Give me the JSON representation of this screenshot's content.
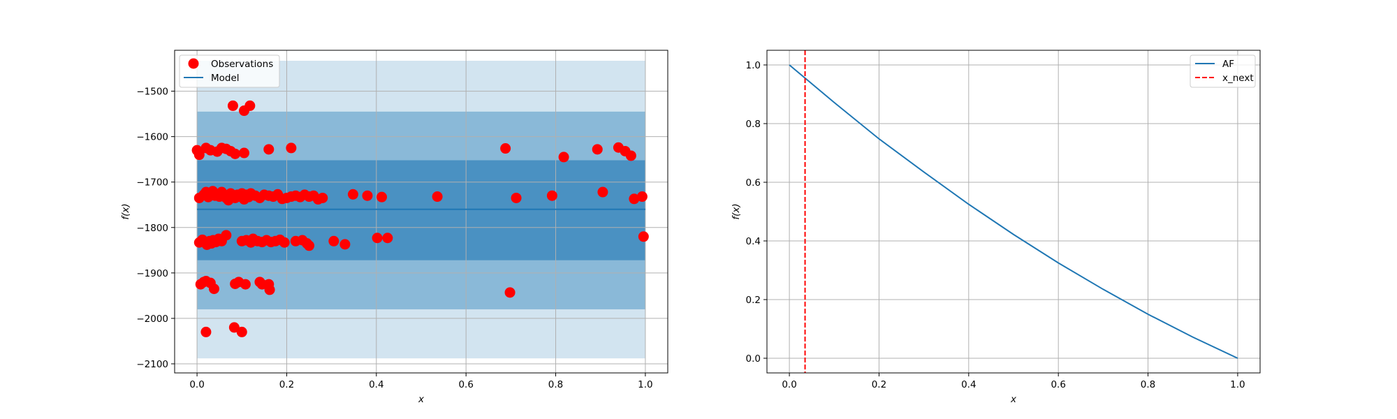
{
  "chart_data": [
    {
      "type": "scatter",
      "xlabel": "x",
      "ylabel": "f(x)",
      "xlim": [
        -0.05,
        1.05
      ],
      "ylim": [
        -2120,
        -1410
      ],
      "xticks": [
        0.0,
        0.2,
        0.4,
        0.6,
        0.8,
        1.0
      ],
      "xtick_labels": [
        "0.0",
        "0.2",
        "0.4",
        "0.6",
        "0.8",
        "1.0"
      ],
      "yticks": [
        -2100,
        -2000,
        -1900,
        -1800,
        -1700,
        -1600,
        -1500
      ],
      "ytick_labels": [
        "−2100",
        "−2000",
        "−1900",
        "−1800",
        "−1700",
        "−1600",
        "−1500"
      ],
      "grid": true,
      "legend_position": "top-left",
      "legend": [
        "Observations",
        "Model"
      ],
      "series": [
        {
          "name": "Observations",
          "color": "#ff0000",
          "points": [
            [
              0.0,
              -1630
            ],
            [
              0.005,
              -1640
            ],
            [
              0.02,
              -1625
            ],
            [
              0.03,
              -1630
            ],
            [
              0.045,
              -1633
            ],
            [
              0.055,
              -1625
            ],
            [
              0.065,
              -1627
            ],
            [
              0.075,
              -1632
            ],
            [
              0.085,
              -1638
            ],
            [
              0.105,
              -1636
            ],
            [
              0.16,
              -1628
            ],
            [
              0.21,
              -1625
            ],
            [
              0.08,
              -1532
            ],
            [
              0.105,
              -1543
            ],
            [
              0.118,
              -1532
            ],
            [
              0.005,
              -1735
            ],
            [
              0.015,
              -1728
            ],
            [
              0.02,
              -1722
            ],
            [
              0.025,
              -1733
            ],
            [
              0.03,
              -1725
            ],
            [
              0.035,
              -1720
            ],
            [
              0.04,
              -1730
            ],
            [
              0.05,
              -1732
            ],
            [
              0.055,
              -1722
            ],
            [
              0.06,
              -1728
            ],
            [
              0.065,
              -1735
            ],
            [
              0.07,
              -1740
            ],
            [
              0.075,
              -1725
            ],
            [
              0.08,
              -1730
            ],
            [
              0.085,
              -1735
            ],
            [
              0.09,
              -1728
            ],
            [
              0.095,
              -1732
            ],
            [
              0.1,
              -1725
            ],
            [
              0.105,
              -1738
            ],
            [
              0.11,
              -1728
            ],
            [
              0.115,
              -1733
            ],
            [
              0.12,
              -1725
            ],
            [
              0.13,
              -1730
            ],
            [
              0.14,
              -1735
            ],
            [
              0.15,
              -1728
            ],
            [
              0.16,
              -1730
            ],
            [
              0.17,
              -1732
            ],
            [
              0.18,
              -1727
            ],
            [
              0.19,
              -1737
            ],
            [
              0.2,
              -1735
            ],
            [
              0.21,
              -1732
            ],
            [
              0.22,
              -1730
            ],
            [
              0.23,
              -1733
            ],
            [
              0.24,
              -1728
            ],
            [
              0.25,
              -1732
            ],
            [
              0.26,
              -1730
            ],
            [
              0.27,
              -1738
            ],
            [
              0.28,
              -1735
            ],
            [
              0.348,
              -1727
            ],
            [
              0.38,
              -1730
            ],
            [
              0.412,
              -1733
            ],
            [
              0.536,
              -1732
            ],
            [
              0.712,
              -1735
            ],
            [
              0.792,
              -1730
            ],
            [
              0.905,
              -1722
            ],
            [
              0.975,
              -1737
            ],
            [
              0.993,
              -1732
            ],
            [
              0.688,
              -1626
            ],
            [
              0.818,
              -1645
            ],
            [
              0.893,
              -1628
            ],
            [
              0.94,
              -1624
            ],
            [
              0.955,
              -1632
            ],
            [
              0.968,
              -1642
            ],
            [
              0.005,
              -1833
            ],
            [
              0.012,
              -1827
            ],
            [
              0.018,
              -1832
            ],
            [
              0.022,
              -1838
            ],
            [
              0.028,
              -1830
            ],
            [
              0.032,
              -1835
            ],
            [
              0.036,
              -1828
            ],
            [
              0.042,
              -1832
            ],
            [
              0.048,
              -1825
            ],
            [
              0.055,
              -1830
            ],
            [
              0.065,
              -1817
            ],
            [
              0.1,
              -1830
            ],
            [
              0.11,
              -1828
            ],
            [
              0.12,
              -1833
            ],
            [
              0.125,
              -1825
            ],
            [
              0.135,
              -1830
            ],
            [
              0.145,
              -1832
            ],
            [
              0.155,
              -1828
            ],
            [
              0.165,
              -1832
            ],
            [
              0.175,
              -1830
            ],
            [
              0.185,
              -1827
            ],
            [
              0.195,
              -1833
            ],
            [
              0.22,
              -1830
            ],
            [
              0.235,
              -1828
            ],
            [
              0.245,
              -1835
            ],
            [
              0.25,
              -1840
            ],
            [
              0.305,
              -1830
            ],
            [
              0.33,
              -1837
            ],
            [
              0.402,
              -1823
            ],
            [
              0.425,
              -1823
            ],
            [
              0.996,
              -1820
            ],
            [
              0.008,
              -1925
            ],
            [
              0.015,
              -1920
            ],
            [
              0.02,
              -1918
            ],
            [
              0.03,
              -1922
            ],
            [
              0.038,
              -1935
            ],
            [
              0.085,
              -1924
            ],
            [
              0.093,
              -1920
            ],
            [
              0.108,
              -1925
            ],
            [
              0.14,
              -1920
            ],
            [
              0.145,
              -1925
            ],
            [
              0.16,
              -1925
            ],
            [
              0.162,
              -1937
            ],
            [
              0.698,
              -1943
            ],
            [
              0.02,
              -2030
            ],
            [
              0.083,
              -2020
            ],
            [
              0.1,
              -2030
            ]
          ]
        },
        {
          "name": "Model",
          "color": "#1f77b4",
          "x": [
            0.0,
            1.0
          ],
          "y": [
            -1760,
            -1760
          ]
        }
      ],
      "bands": [
        {
          "lower": -2088,
          "upper": -1433,
          "color": "#1f77b4",
          "opacity": 0.2
        },
        {
          "lower": -1980,
          "upper": -1545,
          "color": "#1f77b4",
          "opacity": 0.4
        },
        {
          "lower": -1872,
          "upper": -1652,
          "color": "#1f77b4",
          "opacity": 0.6
        }
      ]
    },
    {
      "type": "line",
      "xlabel": "x",
      "ylabel": "f(x)",
      "xlim": [
        -0.05,
        1.05
      ],
      "ylim": [
        -0.05,
        1.05
      ],
      "xticks": [
        0.0,
        0.2,
        0.4,
        0.6,
        0.8,
        1.0
      ],
      "xtick_labels": [
        "0.0",
        "0.2",
        "0.4",
        "0.6",
        "0.8",
        "1.0"
      ],
      "yticks": [
        0.0,
        0.2,
        0.4,
        0.6,
        0.8,
        1.0
      ],
      "ytick_labels": [
        "0.0",
        "0.2",
        "0.4",
        "0.6",
        "0.8",
        "1.0"
      ],
      "grid": true,
      "legend_position": "top-right",
      "legend": [
        "AF",
        "x_next"
      ],
      "series": [
        {
          "name": "AF",
          "color": "#1f77b4",
          "x": [
            0.0,
            0.1,
            0.2,
            0.3,
            0.4,
            0.5,
            0.6,
            0.7,
            0.8,
            0.9,
            1.0
          ],
          "y": [
            1.0,
            0.872,
            0.748,
            0.635,
            0.525,
            0.422,
            0.325,
            0.235,
            0.15,
            0.072,
            0.0
          ]
        },
        {
          "name": "x_next",
          "color": "#ff0000",
          "style": "dashed",
          "x_value": 0.035
        }
      ]
    }
  ]
}
